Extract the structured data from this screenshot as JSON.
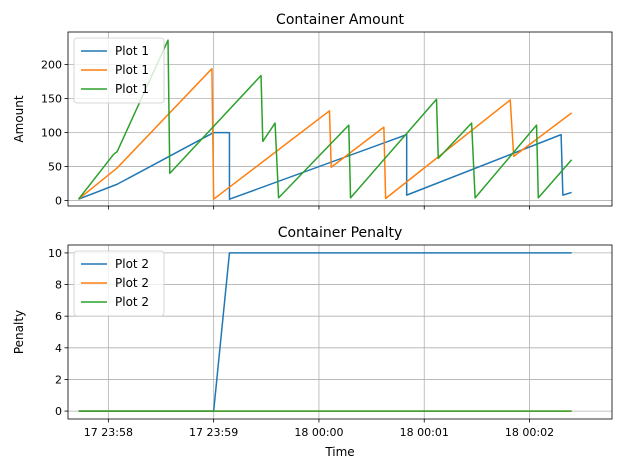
{
  "chart_data": [
    {
      "type": "line",
      "title": "Container Amount",
      "xlabel": "",
      "ylabel": "Amount",
      "xlim": [
        "2023-01-17T23:57:37",
        "2023-01-18T00:02:47"
      ],
      "ylim": [
        -8,
        248
      ],
      "yticks": [
        0,
        50,
        100,
        150,
        200
      ],
      "xticks": [
        {
          "t": "2023-01-17T23:58:00",
          "label": "17 23:58"
        },
        {
          "t": "2023-01-17T23:59:00",
          "label": "17 23:59"
        },
        {
          "t": "2023-01-18T00:00:00",
          "label": "18 00:00"
        },
        {
          "t": "2023-01-18T00:01:00",
          "label": "18 00:01"
        },
        {
          "t": "2023-01-18T00:02:00",
          "label": "18 00:02"
        }
      ],
      "show_xtick_labels": false,
      "grid": true,
      "legend_position": "upper-left",
      "series": [
        {
          "name": "Plot 1",
          "color": "#1f77b4",
          "points": [
            [
              "2023-01-17T23:57:43",
              2
            ],
            [
              "2023-01-17T23:58:05",
              24
            ],
            [
              "2023-01-17T23:59:00",
              100
            ],
            [
              "2023-01-17T23:59:09",
              100
            ],
            [
              "2023-01-17T23:59:09",
              2
            ],
            [
              "2023-01-18T00:00:50",
              97
            ],
            [
              "2023-01-18T00:00:50",
              8
            ],
            [
              "2023-01-18T00:02:18",
              97
            ],
            [
              "2023-01-18T00:02:19",
              8
            ],
            [
              "2023-01-18T00:02:24",
              12
            ]
          ]
        },
        {
          "name": "Plot 1",
          "color": "#ff7f0e",
          "points": [
            [
              "2023-01-17T23:57:43",
              2
            ],
            [
              "2023-01-17T23:58:05",
              48
            ],
            [
              "2023-01-17T23:58:59",
              194
            ],
            [
              "2023-01-17T23:59:00",
              2
            ],
            [
              "2023-01-18T00:00:06",
              132
            ],
            [
              "2023-01-18T00:00:07",
              49
            ],
            [
              "2023-01-18T00:00:37",
              108
            ],
            [
              "2023-01-18T00:00:38",
              3
            ],
            [
              "2023-01-18T00:01:49",
              148
            ],
            [
              "2023-01-18T00:01:51",
              65
            ],
            [
              "2023-01-18T00:02:24",
              129
            ]
          ]
        },
        {
          "name": "Plot 1",
          "color": "#2ca02c",
          "points": [
            [
              "2023-01-17T23:57:43",
              2
            ],
            [
              "2023-01-17T23:58:03",
              68
            ],
            [
              "2023-01-17T23:58:05",
              72
            ],
            [
              "2023-01-17T23:58:34",
              236
            ],
            [
              "2023-01-17T23:58:35",
              40
            ],
            [
              "2023-01-17T23:59:27",
              184
            ],
            [
              "2023-01-17T23:59:28",
              87
            ],
            [
              "2023-01-17T23:59:35",
              114
            ],
            [
              "2023-01-17T23:59:37",
              4
            ],
            [
              "2023-01-18T00:00:17",
              111
            ],
            [
              "2023-01-18T00:00:18",
              4
            ],
            [
              "2023-01-18T00:01:07",
              149
            ],
            [
              "2023-01-18T00:01:08",
              62
            ],
            [
              "2023-01-18T00:01:27",
              114
            ],
            [
              "2023-01-18T00:01:29",
              4
            ],
            [
              "2023-01-18T00:02:04",
              111
            ],
            [
              "2023-01-18T00:02:05",
              4
            ],
            [
              "2023-01-18T00:02:24",
              60
            ]
          ]
        }
      ]
    },
    {
      "type": "line",
      "title": "Container Penalty",
      "xlabel": "Time",
      "ylabel": "Penalty",
      "xlim": [
        "2023-01-17T23:57:37",
        "2023-01-18T00:02:47"
      ],
      "ylim": [
        -0.5,
        10.5
      ],
      "yticks": [
        0,
        2,
        4,
        6,
        8,
        10
      ],
      "xticks": [
        {
          "t": "2023-01-17T23:58:00",
          "label": "17 23:58"
        },
        {
          "t": "2023-01-17T23:59:00",
          "label": "17 23:59"
        },
        {
          "t": "2023-01-18T00:00:00",
          "label": "18 00:00"
        },
        {
          "t": "2023-01-18T00:01:00",
          "label": "18 00:01"
        },
        {
          "t": "2023-01-18T00:02:00",
          "label": "18 00:02"
        }
      ],
      "show_xtick_labels": true,
      "grid": true,
      "legend_position": "upper-left",
      "series": [
        {
          "name": "Plot 2",
          "color": "#1f77b4",
          "points": [
            [
              "2023-01-17T23:57:43",
              0
            ],
            [
              "2023-01-17T23:59:00",
              0
            ],
            [
              "2023-01-17T23:59:09",
              10
            ],
            [
              "2023-01-18T00:02:24",
              10
            ]
          ]
        },
        {
          "name": "Plot 2",
          "color": "#ff7f0e",
          "points": [
            [
              "2023-01-17T23:57:43",
              0
            ],
            [
              "2023-01-18T00:02:24",
              0
            ]
          ]
        },
        {
          "name": "Plot 2",
          "color": "#2ca02c",
          "points": [
            [
              "2023-01-17T23:57:43",
              0
            ],
            [
              "2023-01-18T00:02:24",
              0
            ]
          ]
        }
      ]
    }
  ]
}
